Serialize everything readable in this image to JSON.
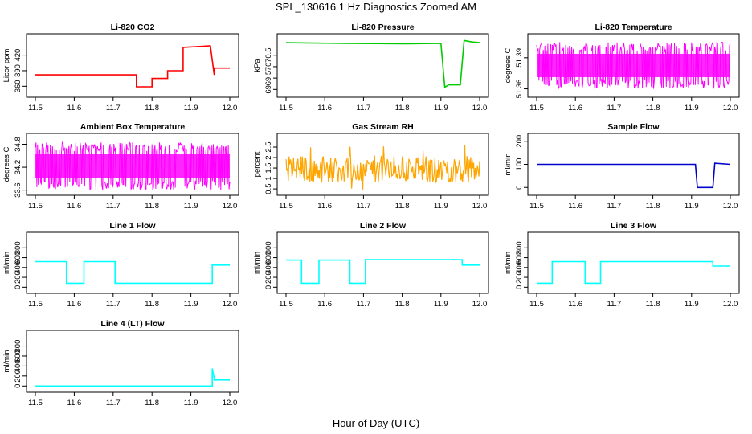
{
  "figure": {
    "title": "SPL_130616  1 Hz Diagnostics Zoomed AM",
    "xlabel": "Hour of Day (UTC)"
  },
  "chart_data": [
    {
      "type": "line",
      "title": "Li-820 CO2",
      "ylabel": "Licor ppm",
      "color": "#ff0000",
      "xlim": [
        11.5,
        12.0
      ],
      "ylim": [
        345,
        455
      ],
      "xticks": [
        "11.5",
        "11.6",
        "11.7",
        "11.8",
        "11.9",
        "12.0"
      ],
      "yticks": [
        360,
        390,
        420
      ],
      "series": [
        {
          "x": [
            11.5,
            11.76,
            11.76,
            11.8,
            11.8,
            11.84,
            11.84,
            11.88,
            11.88,
            11.95,
            11.96,
            11.96,
            12.0
          ],
          "y": [
            382,
            382,
            359,
            359,
            375,
            375,
            390,
            390,
            435,
            438,
            382,
            395,
            395
          ]
        }
      ]
    },
    {
      "type": "line",
      "title": "Li-820 Pressure",
      "ylabel": "kPa",
      "color": "#00cc00",
      "xlim": [
        11.5,
        12.0
      ],
      "ylim": [
        68.8,
        71.3
      ],
      "xticks": [
        "11.5",
        "11.6",
        "11.7",
        "11.8",
        "11.9",
        "12.0"
      ],
      "yticks": [
        69.0,
        69.5,
        70.0,
        70.5
      ],
      "series": [
        {
          "x": [
            11.5,
            11.65,
            11.8,
            11.9,
            11.91,
            11.92,
            11.95,
            11.96,
            11.98,
            12.0
          ],
          "y": [
            71.05,
            71.02,
            71.0,
            71.02,
            69.1,
            69.2,
            69.2,
            71.15,
            71.08,
            71.05
          ]
        }
      ]
    },
    {
      "type": "line",
      "title": "Li-820 Temperature",
      "ylabel": "degrees C",
      "color": "#ff00ff",
      "xlim": [
        11.5,
        12.0
      ],
      "ylim": [
        51.355,
        51.41
      ],
      "xticks": [
        "11.5",
        "11.6",
        "11.7",
        "11.8",
        "11.9",
        "12.0"
      ],
      "yticks": [
        51.36,
        51.39
      ],
      "noise": {
        "low": 51.36,
        "high": 51.405,
        "base": 51.375
      }
    },
    {
      "type": "line",
      "title": "Ambient Box Temperature",
      "ylabel": "degrees C",
      "color": "#ff00ff",
      "xlim": [
        11.5,
        12.0
      ],
      "ylim": [
        33.55,
        35.0
      ],
      "xticks": [
        "11.5",
        "11.6",
        "11.7",
        "11.8",
        "11.9",
        "12.0"
      ],
      "yticks": [
        33.6,
        34.2,
        34.8
      ],
      "noise": {
        "low": 33.6,
        "high": 34.85,
        "base": 34.2
      }
    },
    {
      "type": "scatter",
      "title": "Gas Stream RH",
      "ylabel": "percent",
      "color": "#ffa500",
      "xlim": [
        11.5,
        12.0
      ],
      "ylim": [
        0.35,
        3.0
      ],
      "xticks": [
        "11.5",
        "11.6",
        "11.7",
        "11.8",
        "11.9",
        "12.0"
      ],
      "yticks": [
        0.5,
        1.0,
        1.5,
        2.0,
        2.5
      ],
      "noise": {
        "low": 0.8,
        "high": 2.1,
        "base": 1.45
      }
    },
    {
      "type": "line",
      "title": "Sample Flow",
      "ylabel": "ml/min",
      "color": "#0000cc",
      "xlim": [
        11.5,
        12.0
      ],
      "ylim": [
        -20,
        220
      ],
      "xticks": [
        "11.5",
        "11.6",
        "11.7",
        "11.8",
        "11.9",
        "12.0"
      ],
      "yticks": [
        0,
        100,
        200
      ],
      "series": [
        {
          "x": [
            11.5,
            11.91,
            11.915,
            11.955,
            11.96,
            12.0
          ],
          "y": [
            100,
            100,
            0,
            0,
            105,
            100
          ]
        }
      ]
    },
    {
      "type": "line",
      "title": "Line 1 Flow",
      "ylabel": "ml/min",
      "color": "#00ffff",
      "xlim": [
        11.5,
        12.0
      ],
      "ylim": [
        -60,
        1050
      ],
      "xticks": [
        "11.5",
        "11.6",
        "11.7",
        "11.8",
        "11.9",
        "12.0"
      ],
      "yticks": [
        0,
        200,
        400,
        600,
        800
      ],
      "series": [
        {
          "x": [
            11.5,
            11.58,
            11.58,
            11.625,
            11.625,
            11.705,
            11.705,
            11.955,
            11.955,
            12.0
          ],
          "y": [
            520,
            520,
            80,
            80,
            520,
            520,
            80,
            80,
            450,
            450
          ]
        }
      ]
    },
    {
      "type": "line",
      "title": "Line 2 Flow",
      "ylabel": "ml/min",
      "color": "#00ffff",
      "xlim": [
        11.5,
        12.0
      ],
      "ylim": [
        -60,
        1050
      ],
      "xticks": [
        "11.5",
        "11.6",
        "11.7",
        "11.8",
        "11.9",
        "12.0"
      ],
      "yticks": [
        0,
        200,
        400,
        600,
        800
      ],
      "series": [
        {
          "x": [
            11.5,
            11.54,
            11.54,
            11.585,
            11.585,
            11.665,
            11.665,
            11.705,
            11.705,
            11.955,
            11.955,
            12.0
          ],
          "y": [
            550,
            550,
            80,
            80,
            550,
            550,
            80,
            80,
            560,
            560,
            450,
            450
          ]
        }
      ]
    },
    {
      "type": "line",
      "title": "Line 3 Flow",
      "ylabel": "ml/min",
      "color": "#00ffff",
      "xlim": [
        11.5,
        12.0
      ],
      "ylim": [
        -60,
        1050
      ],
      "xticks": [
        "11.5",
        "11.6",
        "11.7",
        "11.8",
        "11.9",
        "12.0"
      ],
      "yticks": [
        0,
        200,
        400,
        600,
        800
      ],
      "series": [
        {
          "x": [
            11.5,
            11.54,
            11.54,
            11.625,
            11.625,
            11.665,
            11.665,
            11.955,
            11.955,
            12.0
          ],
          "y": [
            80,
            80,
            520,
            520,
            80,
            80,
            520,
            520,
            430,
            430
          ]
        }
      ]
    },
    {
      "type": "line",
      "title": "Line 4 (LT) Flow",
      "ylabel": "ml/min",
      "color": "#00ffff",
      "xlim": [
        11.5,
        12.0
      ],
      "ylim": [
        -60,
        1050
      ],
      "xticks": [
        "11.5",
        "11.6",
        "11.7",
        "11.8",
        "11.9",
        "12.0"
      ],
      "yticks": [
        0,
        200,
        400,
        600,
        800
      ],
      "series": [
        {
          "x": [
            11.5,
            11.955,
            11.955,
            11.96,
            11.96,
            12.0
          ],
          "y": [
            0,
            0,
            350,
            150,
            120,
            120
          ]
        }
      ]
    }
  ]
}
